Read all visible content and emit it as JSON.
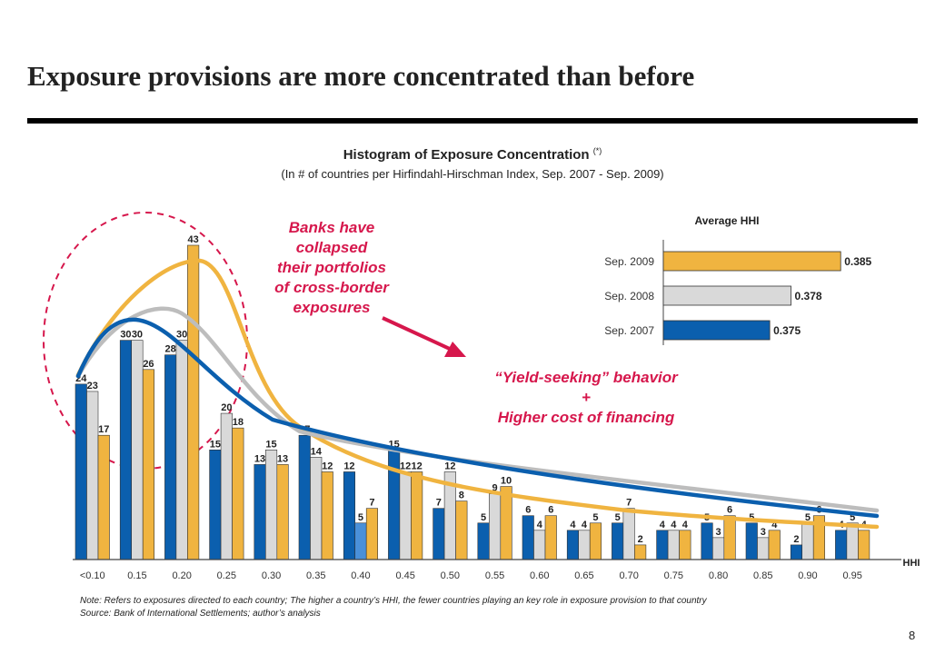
{
  "slide": {
    "title": "Exposure provisions are more concentrated than before",
    "page_number": "8"
  },
  "callouts": {
    "left": [
      "Banks have",
      "collapsed",
      "their portfolios",
      "of cross-border",
      "exposures"
    ],
    "right": [
      "“Yield-seeking” behavior",
      "+",
      "Higher cost of financing"
    ]
  },
  "notes": [
    "Note: Refers to exposures directed to each country; The higher a country’s HHI, the fewer countries playing an key role in exposure provision to that country",
    "Source: Bank of International Settlements; author’s analysis"
  ],
  "colors": {
    "sep2007": "#0b5fae",
    "sep2008": "#d9d9d9",
    "sep2009": "#f0b440",
    "highlight_bar": "#4a90d9",
    "callout": "#d6174c",
    "circle": "#d6174c",
    "curve_2007": "#0b5fae",
    "curve_2008": "#bdbdbd",
    "curve_2009": "#f0b440"
  },
  "chart_data": [
    {
      "type": "bar",
      "title": "Histogram of Exposure Concentration",
      "title_suffix": "(*)",
      "subtitle": "(In # of countries per Hirfindahl-Hirschman Index, Sep. 2007 - Sep. 2009)",
      "xlabel": "HHI",
      "categories": [
        "<0.10",
        "0.15",
        "0.20",
        "0.25",
        "0.30",
        "0.35",
        "0.40",
        "0.45",
        "0.50",
        "0.55",
        "0.60",
        "0.65",
        "0.70",
        "0.75",
        "0.80",
        "0.85",
        "0.90",
        "0.95"
      ],
      "ylim": [
        0,
        45
      ],
      "grid": false,
      "series": [
        {
          "name": "Sep. 2007",
          "values": [
            24,
            30,
            28,
            15,
            13,
            17,
            12,
            15,
            7,
            5,
            6,
            4,
            5,
            4,
            5,
            5,
            2,
            4
          ]
        },
        {
          "name": "Sep. 2008",
          "values": [
            23,
            30,
            30,
            20,
            15,
            14,
            5,
            12,
            12,
            9,
            4,
            4,
            7,
            4,
            3,
            3,
            5,
            5
          ]
        },
        {
          "name": "Sep. 2009",
          "values": [
            17,
            26,
            43,
            18,
            13,
            12,
            7,
            12,
            8,
            10,
            6,
            5,
            2,
            4,
            6,
            4,
            6,
            4
          ]
        }
      ],
      "highlighted": {
        "series": "Sep. 2008",
        "category": "0.40"
      },
      "fitted_curves": [
        "Sep. 2007",
        "Sep. 2008",
        "Sep. 2009"
      ]
    },
    {
      "type": "bar",
      "orientation": "horizontal",
      "title": "Average HHI",
      "categories": [
        "Sep. 2009",
        "Sep. 2008",
        "Sep. 2007"
      ],
      "values": [
        0.385,
        0.378,
        0.375
      ],
      "value_labels": [
        "0.385",
        "0.378",
        "0.375"
      ]
    }
  ]
}
